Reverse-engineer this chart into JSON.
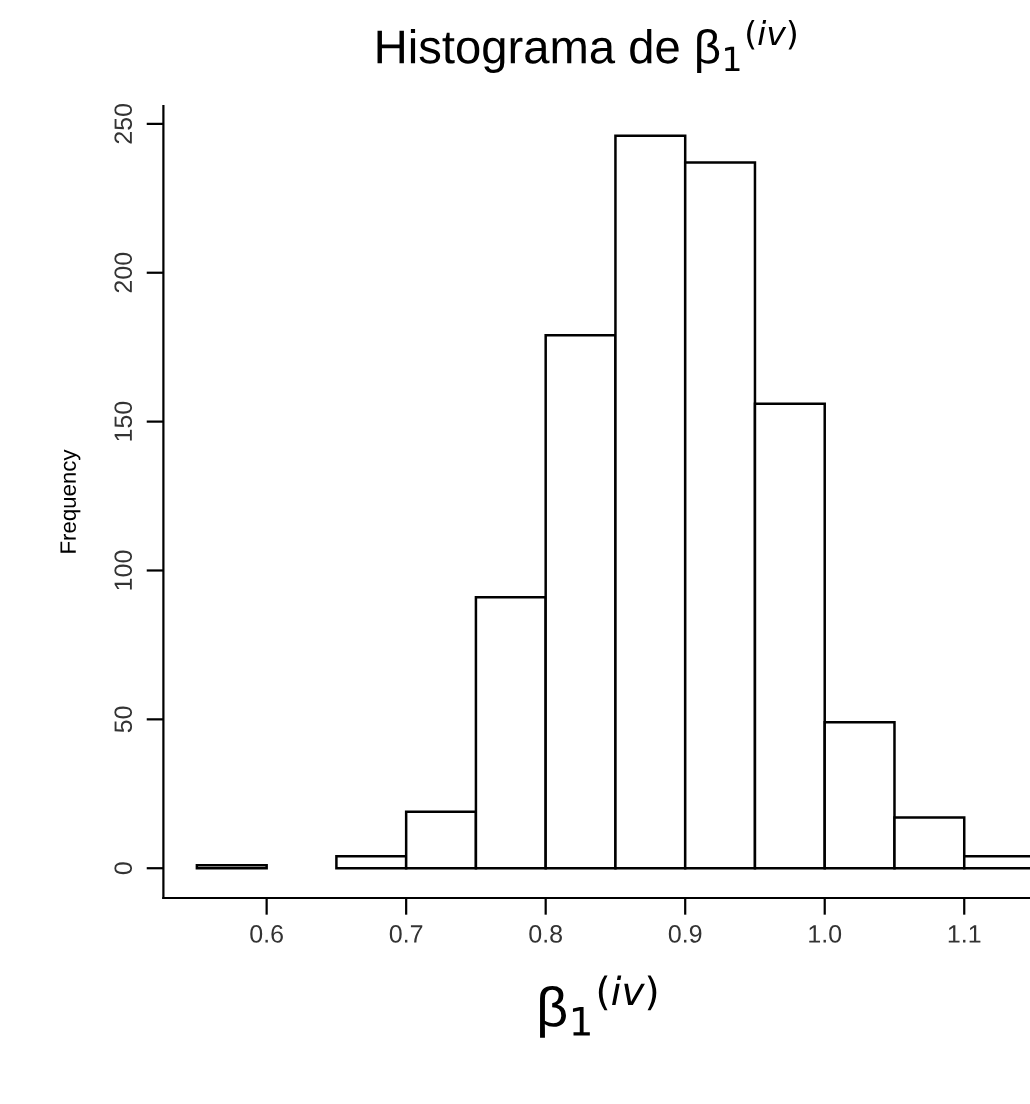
{
  "chart_data": {
    "type": "histogram",
    "title": "Histograma de β$_{1}$$^{(iv)}$",
    "xlabel": "β$_{1}$$^{(iv)}$",
    "ylabel": "Frequency",
    "bins": [
      0.55,
      0.6,
      0.65,
      0.7,
      0.75,
      0.8,
      0.85,
      0.9,
      0.95,
      1.0,
      1.05,
      1.1,
      1.15
    ],
    "values": [
      1,
      0,
      4,
      19,
      91,
      179,
      246,
      237,
      156,
      49,
      17,
      4
    ],
    "color": "#ffffff",
    "xlim": [
      0.526,
      1.15
    ],
    "ylim": [
      -10,
      256
    ],
    "xticks": [
      0.6,
      0.7,
      0.8,
      0.9,
      {
        "value": 1.0,
        "label": "1.0"
      },
      1.1
    ],
    "yticks": [
      0,
      50,
      100,
      150,
      200,
      250
    ],
    "grid": false
  }
}
